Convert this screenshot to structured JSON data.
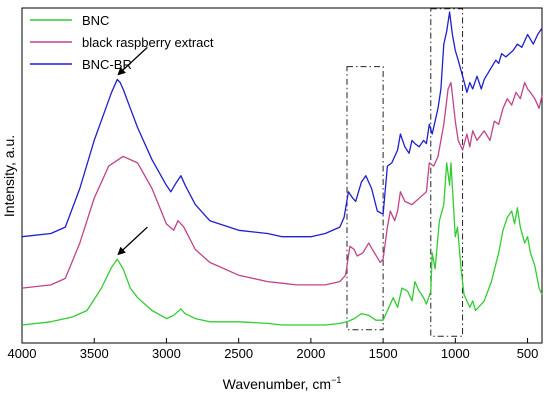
{
  "chart_data": {
    "type": "line",
    "title": "",
    "xlabel": "Wavenumber, cm",
    "xlabel_superscript": "−1",
    "ylabel": "Intensity, a.u.",
    "xlim": [
      4000,
      400
    ],
    "x_reversed": true,
    "xticks": [
      4000,
      3500,
      3000,
      2500,
      2000,
      1500,
      1000,
      500
    ],
    "ylim": [
      0,
      100
    ],
    "y_tick_labels_shown": false,
    "grid": false,
    "legend_position": "top-left",
    "series": [
      {
        "name": "BNC",
        "color": "#33cc33",
        "points": [
          [
            4000,
            2.5
          ],
          [
            3800,
            3.5
          ],
          [
            3650,
            5
          ],
          [
            3550,
            7
          ],
          [
            3450,
            14
          ],
          [
            3380,
            20.5
          ],
          [
            3340,
            23
          ],
          [
            3300,
            20
          ],
          [
            3250,
            14
          ],
          [
            3200,
            11
          ],
          [
            3100,
            7
          ],
          [
            3000,
            4.5
          ],
          [
            2950,
            5.5
          ],
          [
            2900,
            7.5
          ],
          [
            2870,
            6
          ],
          [
            2800,
            4.5
          ],
          [
            2700,
            3.5
          ],
          [
            2500,
            3.5
          ],
          [
            2300,
            3
          ],
          [
            2200,
            2.5
          ],
          [
            2100,
            2.5
          ],
          [
            2000,
            2.5
          ],
          [
            1900,
            2.5
          ],
          [
            1800,
            3
          ],
          [
            1750,
            3.5
          ],
          [
            1700,
            4.5
          ],
          [
            1650,
            6
          ],
          [
            1600,
            5.5
          ],
          [
            1550,
            4
          ],
          [
            1500,
            4
          ],
          [
            1460,
            8
          ],
          [
            1430,
            11
          ],
          [
            1400,
            8
          ],
          [
            1370,
            14
          ],
          [
            1330,
            13
          ],
          [
            1300,
            10
          ],
          [
            1280,
            16
          ],
          [
            1250,
            13
          ],
          [
            1220,
            11
          ],
          [
            1200,
            9
          ],
          [
            1170,
            13
          ],
          [
            1160,
            25
          ],
          [
            1140,
            20
          ],
          [
            1110,
            35
          ],
          [
            1080,
            40
          ],
          [
            1060,
            53
          ],
          [
            1040,
            46
          ],
          [
            1030,
            53
          ],
          [
            1000,
            30
          ],
          [
            985,
            33
          ],
          [
            960,
            20
          ],
          [
            940,
            12
          ],
          [
            900,
            8
          ],
          [
            880,
            10
          ],
          [
            860,
            7
          ],
          [
            800,
            10
          ],
          [
            750,
            16
          ],
          [
            700,
            25
          ],
          [
            670,
            32
          ],
          [
            640,
            36
          ],
          [
            610,
            38
          ],
          [
            590,
            34
          ],
          [
            570,
            39
          ],
          [
            550,
            33
          ],
          [
            520,
            28
          ],
          [
            500,
            30
          ],
          [
            480,
            25
          ],
          [
            450,
            21
          ],
          [
            420,
            14
          ],
          [
            400,
            12
          ]
        ]
      },
      {
        "name": "black raspberry extract",
        "color": "#c0448a",
        "points": [
          [
            4000,
            14
          ],
          [
            3800,
            15
          ],
          [
            3700,
            17
          ],
          [
            3600,
            28
          ],
          [
            3500,
            42
          ],
          [
            3400,
            52
          ],
          [
            3300,
            55
          ],
          [
            3200,
            53
          ],
          [
            3100,
            45
          ],
          [
            3000,
            34
          ],
          [
            2950,
            32
          ],
          [
            2920,
            35
          ],
          [
            2880,
            33
          ],
          [
            2800,
            26
          ],
          [
            2700,
            22
          ],
          [
            2500,
            18
          ],
          [
            2300,
            16
          ],
          [
            2200,
            15.5
          ],
          [
            2100,
            15
          ],
          [
            2000,
            15
          ],
          [
            1900,
            15
          ],
          [
            1800,
            16
          ],
          [
            1760,
            18
          ],
          [
            1730,
            27
          ],
          [
            1700,
            26
          ],
          [
            1680,
            24
          ],
          [
            1640,
            25
          ],
          [
            1600,
            28
          ],
          [
            1560,
            25
          ],
          [
            1520,
            22
          ],
          [
            1500,
            23
          ],
          [
            1470,
            33
          ],
          [
            1450,
            38
          ],
          [
            1420,
            35
          ],
          [
            1400,
            38
          ],
          [
            1380,
            44
          ],
          [
            1350,
            41
          ],
          [
            1300,
            40
          ],
          [
            1250,
            42
          ],
          [
            1200,
            44
          ],
          [
            1180,
            53
          ],
          [
            1150,
            52
          ],
          [
            1120,
            55
          ],
          [
            1100,
            60
          ],
          [
            1080,
            65
          ],
          [
            1050,
            76
          ],
          [
            1030,
            78
          ],
          [
            1000,
            66
          ],
          [
            980,
            60
          ],
          [
            950,
            57
          ],
          [
            920,
            62
          ],
          [
            900,
            58
          ],
          [
            880,
            63
          ],
          [
            850,
            60
          ],
          [
            800,
            63
          ],
          [
            760,
            60
          ],
          [
            730,
            66
          ],
          [
            700,
            65
          ],
          [
            670,
            70
          ],
          [
            640,
            73
          ],
          [
            610,
            71
          ],
          [
            580,
            75
          ],
          [
            550,
            73
          ],
          [
            520,
            78
          ],
          [
            500,
            76
          ],
          [
            480,
            75
          ],
          [
            450,
            73
          ],
          [
            420,
            70
          ],
          [
            400,
            74
          ]
        ]
      },
      {
        "name": "BNC-BR",
        "color": "#1f1fcc",
        "points": [
          [
            4000,
            30
          ],
          [
            3800,
            31
          ],
          [
            3700,
            33
          ],
          [
            3600,
            45
          ],
          [
            3500,
            60
          ],
          [
            3420,
            70
          ],
          [
            3380,
            75
          ],
          [
            3340,
            79
          ],
          [
            3320,
            78
          ],
          [
            3300,
            76
          ],
          [
            3250,
            70
          ],
          [
            3200,
            64
          ],
          [
            3100,
            54
          ],
          [
            3000,
            46
          ],
          [
            2970,
            44
          ],
          [
            2930,
            47
          ],
          [
            2900,
            49
          ],
          [
            2870,
            46
          ],
          [
            2800,
            40
          ],
          [
            2700,
            35
          ],
          [
            2500,
            32
          ],
          [
            2300,
            31
          ],
          [
            2200,
            30
          ],
          [
            2100,
            30
          ],
          [
            2000,
            30
          ],
          [
            1900,
            31
          ],
          [
            1800,
            33
          ],
          [
            1770,
            36
          ],
          [
            1740,
            44
          ],
          [
            1710,
            42
          ],
          [
            1690,
            41
          ],
          [
            1650,
            47
          ],
          [
            1620,
            49
          ],
          [
            1580,
            45
          ],
          [
            1540,
            38
          ],
          [
            1500,
            37
          ],
          [
            1470,
            52
          ],
          [
            1440,
            53
          ],
          [
            1400,
            57
          ],
          [
            1380,
            62
          ],
          [
            1350,
            58
          ],
          [
            1320,
            56
          ],
          [
            1300,
            60
          ],
          [
            1280,
            59
          ],
          [
            1250,
            58
          ],
          [
            1220,
            60
          ],
          [
            1200,
            59
          ],
          [
            1180,
            65
          ],
          [
            1160,
            62
          ],
          [
            1140,
            66
          ],
          [
            1120,
            70
          ],
          [
            1100,
            76
          ],
          [
            1080,
            90
          ],
          [
            1060,
            94
          ],
          [
            1040,
            100
          ],
          [
            1020,
            93
          ],
          [
            1000,
            88
          ],
          [
            980,
            85
          ],
          [
            950,
            80
          ],
          [
            920,
            75
          ],
          [
            900,
            78
          ],
          [
            880,
            76
          ],
          [
            850,
            80
          ],
          [
            820,
            76
          ],
          [
            800,
            79
          ],
          [
            760,
            82
          ],
          [
            720,
            85
          ],
          [
            700,
            84
          ],
          [
            680,
            87
          ],
          [
            650,
            86
          ],
          [
            600,
            88
          ],
          [
            570,
            90
          ],
          [
            540,
            89
          ],
          [
            500,
            93
          ],
          [
            460,
            90
          ],
          [
            430,
            93
          ],
          [
            400,
            95
          ]
        ]
      }
    ],
    "annotations": [
      {
        "type": "arrow",
        "series": "BNC-BR",
        "target_x": 3340
      },
      {
        "type": "arrow",
        "series": "BNC",
        "target_x": 3340
      },
      {
        "type": "dash-dot-box",
        "x_range": [
          1750,
          1500
        ],
        "y_range": [
          1,
          83
        ]
      },
      {
        "type": "dash-dot-box",
        "x_range": [
          1170,
          950
        ],
        "y_range": [
          -1,
          101
        ]
      }
    ]
  }
}
